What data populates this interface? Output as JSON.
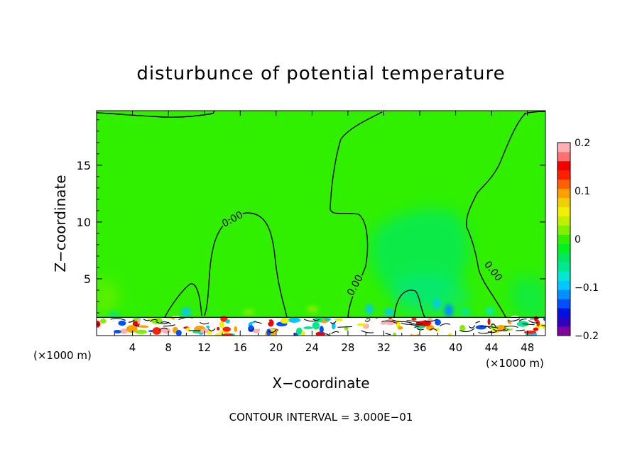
{
  "chart_data": {
    "type": "heatmap",
    "title": "disturbunce of potential temperature",
    "xlabel": "X−coordinate",
    "ylabel": "Z−coordinate",
    "x_unit": "(×1000 m)",
    "z_unit": "(×1000 m)",
    "xlim": [
      0,
      50
    ],
    "ylim": [
      0,
      19.8
    ],
    "x_ticks": [
      4,
      8,
      12,
      16,
      20,
      24,
      28,
      32,
      36,
      40,
      44,
      48
    ],
    "x_tick_labels": [
      "4",
      "8",
      "12",
      "16",
      "20",
      "24",
      "28",
      "32",
      "36",
      "40",
      "44",
      "48"
    ],
    "y_ticks": [
      5,
      10,
      15
    ],
    "y_tick_labels": [
      "5",
      "10",
      "15"
    ],
    "colorbar": {
      "min": -0.2,
      "max": 0.2,
      "ticks": [
        0.2,
        0.1,
        0,
        -0.1,
        -0.2
      ],
      "tick_labels": [
        "0.2",
        "0.1",
        "0",
        "−0.1",
        "−0.2"
      ],
      "colors": [
        "#8000a0",
        "#3000c0",
        "#0010e0",
        "#0050ff",
        "#0090ff",
        "#00c8ff",
        "#00e8d0",
        "#00e890",
        "#00e860",
        "#00f020",
        "#30f000",
        "#80f000",
        "#c0f000",
        "#f0f000",
        "#f0d000",
        "#ffa000",
        "#ff6000",
        "#ff2000",
        "#f00000",
        "#ff7070",
        "#ffb0b0"
      ]
    },
    "background_value": 0.0,
    "contour_labels": [
      {
        "text": "0.00",
        "x": 15.3,
        "z": 10.0
      },
      {
        "text": "0.00",
        "x": 29.1,
        "z": 4.3
      },
      {
        "text": "0.00",
        "x": 43.9,
        "z": 5.5
      }
    ],
    "cool_anomaly_regions": [
      {
        "x_center": 33.5,
        "z_center": 7.5,
        "value": -0.02
      },
      {
        "x_center": 36.5,
        "z_center": 5.5,
        "value": -0.03
      },
      {
        "x_center": 40.0,
        "z_center": 1.2,
        "value": -0.1
      }
    ],
    "boundary_layer_top": 1.6,
    "annotation": "CONTOUR INTERVAL = 3.000E−01"
  }
}
